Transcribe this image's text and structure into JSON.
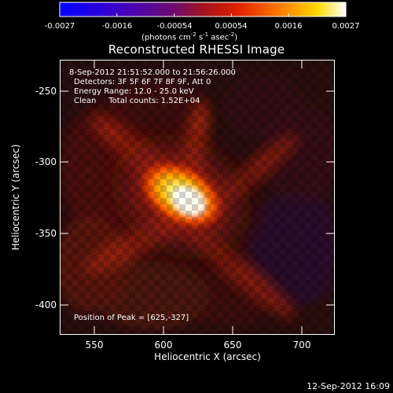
{
  "colorbar": {
    "tick_labels": [
      "-0.0027",
      "-0.0016",
      "-0.00054",
      "0.00054",
      "0.0016",
      "0.0027"
    ],
    "units_main": "(photons cm",
    "units_exp1": "-2",
    "units_mid": " s",
    "units_exp2": "-1",
    "units_end": " asec",
    "units_exp3": "-2",
    "units_close": ")"
  },
  "title": "Reconstructed RHESSI Image",
  "info": {
    "time_range": "8-Sep-2012 21:51:52.000 to 21:56:26.000",
    "detectors": "Detectors: 3F 5F 6F 7F 8F 9F, Att 0",
    "energy_range": "Energy Range: 12.0 - 25.0 keV",
    "method_counts": "Clean     Total counts: 1.52E+04",
    "peak_position": "Position of Peak = [625,-327]"
  },
  "axes": {
    "x_label": "Heliocentric X (arcsec)",
    "y_label": "Heliocentric Y (arcsec)",
    "x_ticks": [
      "550",
      "600",
      "650",
      "700"
    ],
    "y_ticks": [
      "-250",
      "-300",
      "-350",
      "-400"
    ]
  },
  "footer": {
    "timestamp": "12-Sep-2012 16:09"
  },
  "colors": {
    "background": "#000000",
    "axis": "#ffffff"
  }
}
